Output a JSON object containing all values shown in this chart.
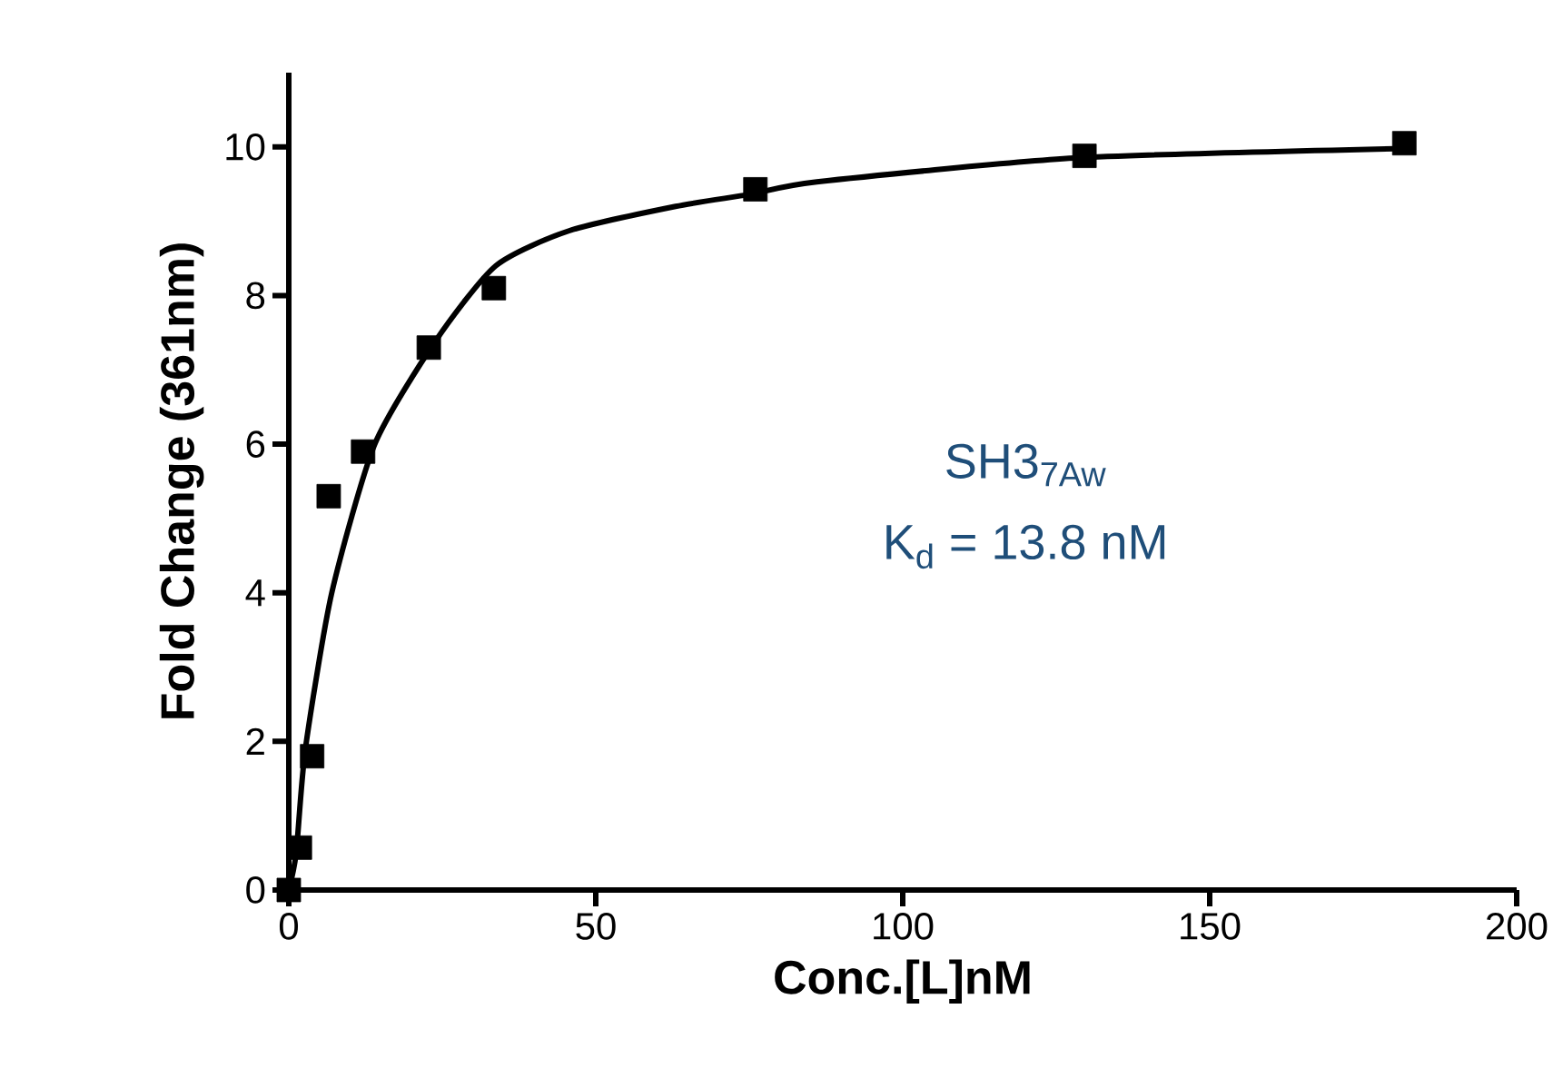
{
  "chart_data": {
    "type": "scatter",
    "xlabel": "Conc.[L]nM",
    "ylabel": "Fold Change (361nm)",
    "xlim": [
      0,
      200
    ],
    "ylim": [
      0,
      11
    ],
    "xticks": [
      0,
      50,
      100,
      150,
      200
    ],
    "yticks": [
      0,
      2,
      4,
      6,
      8,
      10
    ],
    "annotations": [
      "SH3$_{7Aw}$",
      "K$_{d}$ = 13.8 nM"
    ],
    "series": [
      {
        "type": "line",
        "color": "#000000",
        "line_style": "solid",
        "marker": "none",
        "x": [
          0,
          1.2,
          2.7,
          7,
          14,
          24,
          33.7,
          45.6,
          63,
          75,
          86,
          128,
          182
        ],
        "values": [
          0,
          0.5,
          1.9,
          4.0,
          6.0,
          7.4,
          8.4,
          8.87,
          9.2,
          9.36,
          9.53,
          9.85,
          9.98
        ]
      },
      {
        "color": "#000000",
        "marker": "square",
        "x": [
          0,
          1.8,
          3.8,
          6.5,
          12.1,
          22.8,
          33.4,
          76,
          129.6,
          181.7
        ],
        "values": [
          0,
          0.57,
          1.8,
          5.3,
          5.9,
          7.3,
          8.1,
          9.43,
          9.88,
          10.05
        ]
      }
    ]
  }
}
